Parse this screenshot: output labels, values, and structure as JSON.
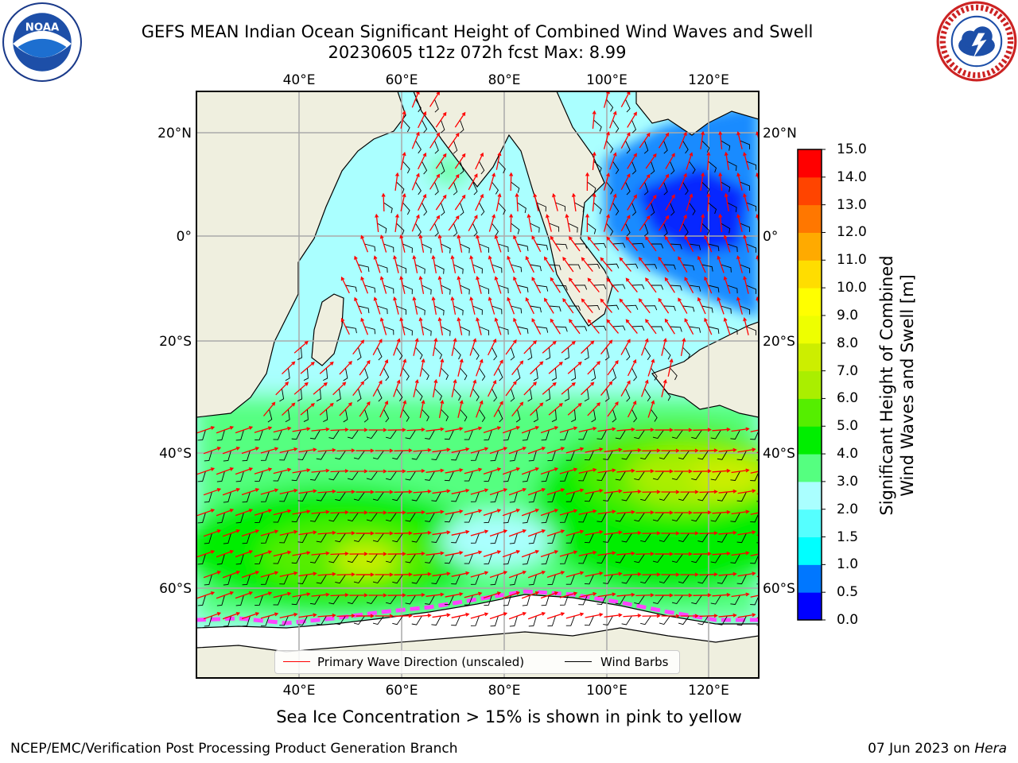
{
  "title": {
    "line1": "GEFS MEAN Indian Ocean Significant Height of Combined Wind Waves and Swell",
    "line2": "20230605 t12z 072h fcst   Max: 8.99"
  },
  "logos": {
    "left": "noaa-logo",
    "right": "national-weather-service-logo"
  },
  "map": {
    "lon_labels_top": [
      "40°E",
      "60°E",
      "80°E",
      "100°E",
      "120°E"
    ],
    "lon_labels_bottom": [
      "40°E",
      "60°E",
      "80°E",
      "100°E",
      "120°E"
    ],
    "lat_labels_left": [
      "20°N",
      "0°",
      "20°S",
      "40°S",
      "60°S"
    ],
    "lat_labels_right": [
      "20°N",
      "0°",
      "20°S",
      "40°S",
      "60°S"
    ],
    "lon_range": [
      20,
      130
    ],
    "lat_range": [
      -70,
      28
    ],
    "land_color": "#efefdf",
    "ocean_base_color": "#aaffff",
    "arrow_color": "#ff0000",
    "barb_color": "#000000",
    "grid": true
  },
  "legend": {
    "wave_dir_label": "Primary Wave Direction (unscaled)",
    "barbs_label": "Wind Barbs",
    "wave_dir_color": "#ff0000",
    "barbs_color": "#000000"
  },
  "colorbar": {
    "title_line1": "Significant Height of Combined",
    "title_line2": "Wind Waves and Swell [m]",
    "tick_labels": [
      "15.0",
      "14.0",
      "13.0",
      "12.0",
      "11.0",
      "10.0",
      "9.0",
      "8.0",
      "7.0",
      "6.0",
      "5.0",
      "4.0",
      "3.0",
      "2.0",
      "1.5",
      "1.0",
      "0.5",
      "0.0"
    ],
    "levels": [
      0.0,
      0.5,
      1.0,
      1.5,
      2.0,
      3.0,
      4.0,
      5.0,
      6.0,
      7.0,
      8.0,
      9.0,
      10.0,
      11.0,
      12.0,
      13.0,
      14.0,
      15.0
    ],
    "colors": [
      "#0000ff",
      "#0077ff",
      "#00ffff",
      "#55ffff",
      "#aaffff",
      "#55ff80",
      "#00ee00",
      "#55ee00",
      "#aaee00",
      "#ccee00",
      "#eeff00",
      "#ffff00",
      "#ffdd00",
      "#ffaa00",
      "#ff7700",
      "#ff4400",
      "#ff0000"
    ]
  },
  "ice_note": "Sea Ice Concentration > 15% is shown in pink to yellow",
  "footer": {
    "left": "NCEP/EMC/Verification Post Processing Product Generation Branch",
    "right_date": "07 Jun 2023 on ",
    "right_host": "Hera"
  }
}
